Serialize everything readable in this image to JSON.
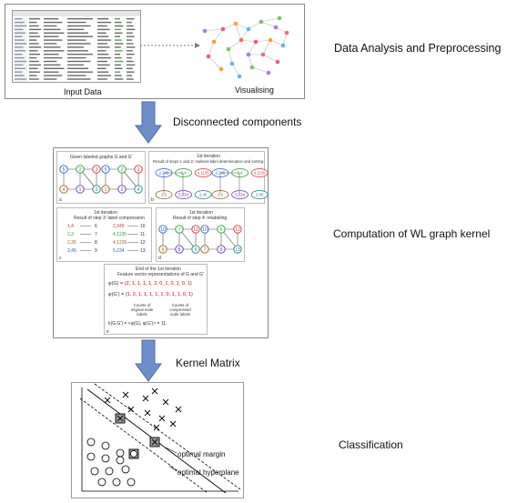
{
  "stage1": {
    "label": "Data Analysis and Preprocessing",
    "input_caption": "Input Data",
    "vis_caption": "Visualising"
  },
  "arrow1": {
    "label": "Disconnected components"
  },
  "stage2": {
    "label": "Computation of WL graph kernel",
    "panel_a_title": "Given labeled graphs G and G'",
    "panel_b_title_1": "1st iteration",
    "panel_b_title_2": "Result of steps 1 and 2: multiset-label determination and sorting",
    "panel_c_title_1": "1st iteration",
    "panel_c_title_2": "Result of step 3: label compression",
    "panel_d_title_1": "1st iteration",
    "panel_d_title_2": "Result of step 4: relabeling",
    "panel_e_title_1": "End of the 1st iteration",
    "panel_e_title_2": "Feature vector representations of G and G'",
    "compress_rows": [
      {
        "from": "1,4",
        "to": "6",
        "res": "2,345",
        "out": "10"
      },
      {
        "from": "2,3",
        "to": "7",
        "res": "4,1135",
        "out": "11"
      },
      {
        "from": "2,35",
        "to": "8",
        "res": "4,1235",
        "out": "12"
      },
      {
        "from": "2,45",
        "to": "9",
        "res": "5,234",
        "out": "13"
      }
    ],
    "vec1": "(2, 1, 1, 1, 1, 2, 0, 1, 0, 1, 0, 1)",
    "vec2": "(1, 2, 1, 1, 1, 1, 1, 0, 1, 1, 0, 1)",
    "count_orig": "Counts of original node labels",
    "count_comp": "Counts of compressed node labels",
    "panel_letters": [
      "a",
      "b",
      "c",
      "d",
      "e"
    ]
  },
  "arrow2": {
    "label": "Kernel Matrix"
  },
  "stage3": {
    "label": "Classification",
    "optimal_margin": "optimal margin",
    "optimal_hyperplane": "optimal hyperplane"
  },
  "colors": {
    "arrow_fill": "#6f8fcb",
    "arrow_stroke": "#4a6aa8"
  }
}
